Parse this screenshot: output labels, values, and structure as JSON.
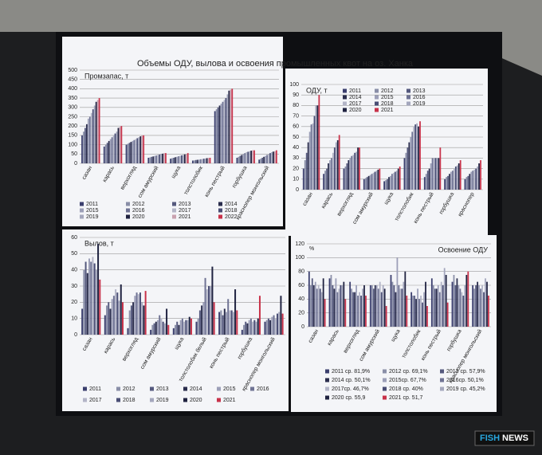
{
  "slide_title": "Объемы ОДУ, вылова и освоения промышленных квот на оз. Ханка",
  "watermark": {
    "left": "FISH",
    "right": "NEWS"
  },
  "chart_data": [
    {
      "type": "bar",
      "title": "Промзапас, т",
      "categories": [
        "сазан",
        "карась",
        "верхогляд",
        "сом амурский",
        "щука",
        "толстолобик",
        "конь пестрый",
        "горбушка",
        "краснопер монгольский"
      ],
      "ylim": [
        0,
        500
      ],
      "yticks": [
        0,
        50,
        100,
        150,
        200,
        250,
        300,
        350,
        400,
        450,
        500
      ],
      "grid": true,
      "series": [
        {
          "name": "2011",
          "color": "#3b3f6e",
          "values": [
            150,
            90,
            100,
            30,
            25,
            15,
            280,
            30,
            20
          ]
        },
        {
          "name": "2012",
          "color": "#8a8fa8",
          "values": [
            170,
            100,
            105,
            32,
            28,
            16,
            290,
            35,
            25
          ]
        },
        {
          "name": "2013",
          "color": "#55597e",
          "values": [
            190,
            110,
            110,
            35,
            30,
            18,
            300,
            40,
            30
          ]
        },
        {
          "name": "2014",
          "color": "#2a2d4d",
          "values": [
            210,
            120,
            115,
            37,
            33,
            19,
            310,
            45,
            35
          ]
        },
        {
          "name": "2015",
          "color": "#9c9fb8",
          "values": [
            240,
            130,
            120,
            40,
            35,
            20,
            320,
            50,
            40
          ]
        },
        {
          "name": "2016",
          "color": "#6f7394",
          "values": [
            250,
            140,
            125,
            42,
            38,
            22,
            330,
            55,
            45
          ]
        },
        {
          "name": "2017",
          "color": "#b3b5c7",
          "values": [
            270,
            150,
            130,
            45,
            40,
            23,
            340,
            60,
            50
          ]
        },
        {
          "name": "2018",
          "color": "#4a4e75",
          "values": [
            290,
            160,
            135,
            47,
            43,
            25,
            350,
            62,
            55
          ]
        },
        {
          "name": "2019",
          "color": "#a4a7bd",
          "values": [
            310,
            170,
            140,
            50,
            45,
            26,
            370,
            65,
            60
          ]
        },
        {
          "name": "2020",
          "color": "#1f2240",
          "values": [
            330,
            190,
            145,
            52,
            48,
            28,
            390,
            68,
            63
          ]
        },
        {
          "name": "2021",
          "color": "#c9a2b0",
          "values": [
            340,
            195,
            150,
            55,
            50,
            29,
            395,
            70,
            65
          ]
        },
        {
          "name": "2022",
          "color": "#c8324a",
          "values": [
            350,
            200,
            150,
            55,
            55,
            30,
            400,
            70,
            70
          ]
        }
      ]
    },
    {
      "type": "bar",
      "title": "ОДУ, т",
      "categories": [
        "сазан",
        "карась",
        "верхогляд",
        "сом амурский",
        "щука",
        "толстолобик",
        "конь пестрый",
        "горбушка",
        "краснопер"
      ],
      "ylim": [
        0,
        100
      ],
      "yticks": [
        0,
        10,
        20,
        30,
        40,
        50,
        60,
        70,
        80,
        90,
        100
      ],
      "grid": true,
      "series": [
        {
          "name": "2011",
          "color": "#3b3f6e",
          "values": [
            20,
            15,
            20,
            10,
            8,
            30,
            12,
            10,
            10
          ]
        },
        {
          "name": "2012",
          "color": "#8a8fa8",
          "values": [
            28,
            18,
            22,
            11,
            9,
            35,
            15,
            12,
            12
          ]
        },
        {
          "name": "2013",
          "color": "#55597e",
          "values": [
            35,
            20,
            25,
            12,
            10,
            40,
            18,
            13,
            13
          ]
        },
        {
          "name": "2014",
          "color": "#2a2d4d",
          "values": [
            45,
            25,
            28,
            13,
            12,
            45,
            20,
            15,
            15
          ]
        },
        {
          "name": "2015",
          "color": "#9c9fb8",
          "values": [
            55,
            28,
            30,
            14,
            13,
            50,
            25,
            17,
            17
          ]
        },
        {
          "name": "2016",
          "color": "#6f7394",
          "values": [
            62,
            30,
            32,
            15,
            15,
            55,
            30,
            18,
            18
          ]
        },
        {
          "name": "2017",
          "color": "#b3b5c7",
          "values": [
            63,
            35,
            33,
            16,
            16,
            60,
            30,
            20,
            19
          ]
        },
        {
          "name": "2018",
          "color": "#4a4e75",
          "values": [
            70,
            40,
            35,
            17,
            17,
            62,
            30,
            22,
            20
          ]
        },
        {
          "name": "2019",
          "color": "#a4a7bd",
          "values": [
            80,
            45,
            36,
            18,
            18,
            63,
            30,
            23,
            22
          ]
        },
        {
          "name": "2020",
          "color": "#1f2240",
          "values": [
            80,
            47,
            40,
            19,
            20,
            60,
            30,
            25,
            25
          ]
        },
        {
          "name": "2021",
          "color": "#c8324a",
          "values": [
            90,
            52,
            40,
            20,
            22,
            65,
            40,
            28,
            28
          ]
        }
      ]
    },
    {
      "type": "bar",
      "title": "Вылов, т",
      "categories": [
        "сазан",
        "карась",
        "верхогляд",
        "сом амурский",
        "щука",
        "толстолобик белый",
        "конь пестрый",
        "горбушка",
        "краснопер монгольский"
      ],
      "ylim": [
        0,
        60
      ],
      "yticks": [
        0,
        10,
        20,
        30,
        40,
        50,
        60
      ],
      "grid": true,
      "series": [
        {
          "name": "2011",
          "color": "#3b3f6e",
          "values": [
            16,
            12,
            4,
            3,
            4,
            8,
            14,
            3,
            8
          ]
        },
        {
          "name": "2012",
          "color": "#8a8fa8",
          "values": [
            40,
            18,
            15,
            6,
            6,
            10,
            15,
            6,
            9
          ]
        },
        {
          "name": "2013",
          "color": "#55597e",
          "values": [
            45,
            20,
            18,
            7,
            8,
            15,
            12,
            8,
            10
          ]
        },
        {
          "name": "2014",
          "color": "#2a2d4d",
          "values": [
            38,
            16,
            20,
            8,
            6,
            18,
            16,
            7,
            9
          ]
        },
        {
          "name": "2015",
          "color": "#9c9fb8",
          "values": [
            47,
            22,
            24,
            9,
            9,
            20,
            14,
            9,
            11
          ]
        },
        {
          "name": "2016",
          "color": "#6f7394",
          "values": [
            45,
            24,
            26,
            12,
            10,
            35,
            22,
            10,
            12
          ]
        },
        {
          "name": "2017",
          "color": "#b3b5c7",
          "values": [
            48,
            28,
            25,
            10,
            8,
            28,
            15,
            8,
            10
          ]
        },
        {
          "name": "2018",
          "color": "#4a4e75",
          "values": [
            44,
            26,
            26,
            8,
            9,
            30,
            15,
            9,
            13
          ]
        },
        {
          "name": "2019",
          "color": "#a4a7bd",
          "values": [
            40,
            21,
            20,
            7,
            9,
            30,
            14,
            8,
            14
          ]
        },
        {
          "name": "2020",
          "color": "#1f2240",
          "values": [
            56,
            31,
            18,
            16,
            11,
            42,
            28,
            10,
            24
          ]
        },
        {
          "name": "2021",
          "color": "#c8324a",
          "values": [
            34,
            20,
            27,
            6,
            10,
            20,
            15,
            24,
            13
          ]
        }
      ]
    },
    {
      "type": "bar",
      "title": "Освоение ОДУ",
      "ylabel": "%",
      "categories": [
        "сазан",
        "карась",
        "верхогляд",
        "сом амурский",
        "щука",
        "толстолобик",
        "конь пестрый",
        "горбушка",
        "краснопер монгольский"
      ],
      "ylim": [
        0,
        120
      ],
      "yticks": [
        0,
        20,
        40,
        60,
        80,
        100,
        120
      ],
      "grid": true,
      "series": [
        {
          "name": "2011 ср. 81,9%",
          "color": "#3b3f6e",
          "values": [
            80,
            70,
            65,
            60,
            75,
            50,
            70,
            65,
            60
          ]
        },
        {
          "name": "2012 ср. 69,1%",
          "color": "#8a8fa8",
          "values": [
            60,
            75,
            55,
            60,
            65,
            45,
            60,
            75,
            55
          ]
        },
        {
          "name": "2013 ср. 57,9%",
          "color": "#55597e",
          "values": [
            70,
            60,
            50,
            55,
            60,
            45,
            55,
            60,
            60
          ]
        },
        {
          "name": "2014 ср. 50,1%",
          "color": "#2a2d4d",
          "values": [
            60,
            55,
            50,
            60,
            50,
            40,
            55,
            70,
            65
          ]
        },
        {
          "name": "2015ср. 67,7%",
          "color": "#9c9fb8",
          "values": [
            65,
            70,
            60,
            60,
            100,
            55,
            60,
            60,
            60
          ]
        },
        {
          "name": "2016ср. 50,1%",
          "color": "#6f7394",
          "values": [
            55,
            50,
            45,
            55,
            60,
            40,
            50,
            55,
            55
          ]
        },
        {
          "name": "2017ср. 46,7%",
          "color": "#b3b5c7",
          "values": [
            60,
            55,
            50,
            65,
            55,
            45,
            65,
            50,
            60
          ]
        },
        {
          "name": "2018 ср. 40%",
          "color": "#4a4e75",
          "values": [
            55,
            60,
            45,
            50,
            55,
            35,
            60,
            45,
            50
          ]
        },
        {
          "name": "2019 ср. 45,2%",
          "color": "#a4a7bd",
          "values": [
            50,
            60,
            55,
            60,
            65,
            50,
            85,
            60,
            70
          ]
        },
        {
          "name": "2020 ср. 55,9",
          "color": "#1f2240",
          "values": [
            70,
            65,
            60,
            55,
            80,
            65,
            75,
            75,
            65
          ]
        },
        {
          "name": "2021 ср. 51,7",
          "color": "#c8324a",
          "values": [
            40,
            40,
            45,
            30,
            45,
            30,
            35,
            80,
            45
          ]
        }
      ]
    }
  ]
}
